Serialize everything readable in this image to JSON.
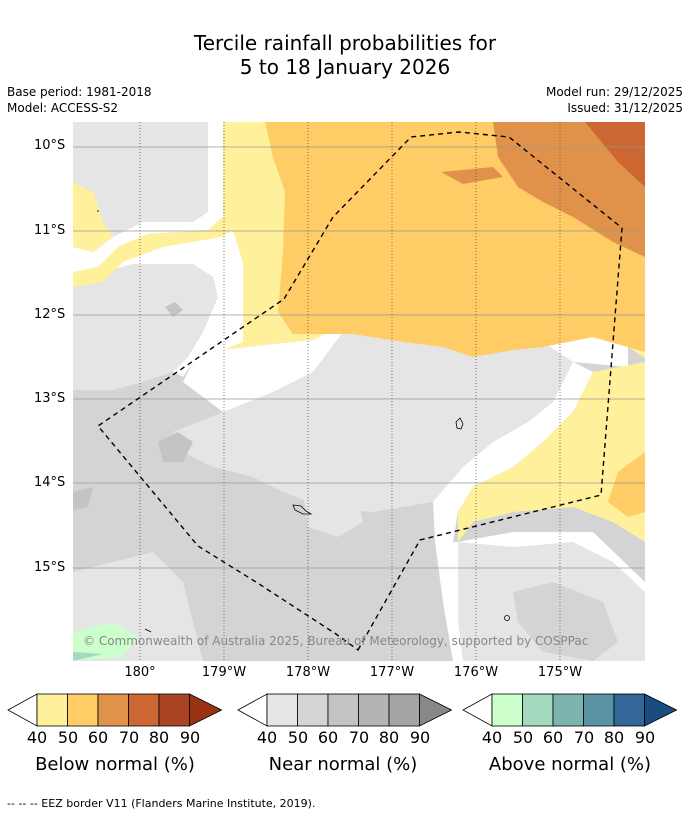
{
  "title": {
    "line1": "Tercile rainfall probabilities for",
    "line2": "5 to 18 January 2026"
  },
  "meta": {
    "base_period": "Base period: 1981-2018",
    "model": "Model: ACCESS-S2",
    "model_run": "Model run: 29/12/2025",
    "issued": "Issued: 31/12/2025"
  },
  "map": {
    "latitude_labels": [
      "10°S",
      "11°S",
      "12°S",
      "13°S",
      "14°S",
      "15°S"
    ],
    "longitude_labels": [
      "180°",
      "179°W",
      "178°W",
      "177°W",
      "176°W",
      "175°W"
    ],
    "copyright": "© Commonwealth of Australia 2025, Bureau of Meteorology, supported by COSPPac"
  },
  "colorbars": [
    {
      "name": "Below normal (%)",
      "colors": [
        "#fff09c",
        "#ffcc66",
        "#e0924a",
        "#cc6633",
        "#aa4422",
        "#993311"
      ]
    },
    {
      "name": "Near normal (%)",
      "colors": [
        "#e5e5e5",
        "#d4d4d4",
        "#c4c4c4",
        "#b4b4b4",
        "#a4a4a4",
        "#888888"
      ]
    },
    {
      "name": "Above normal (%)",
      "colors": [
        "#ccffcc",
        "#a3d9be",
        "#7db5ae",
        "#5a94a3",
        "#336699",
        "#1a4c80"
      ]
    }
  ],
  "colorbar_ticks": [
    "40",
    "50",
    "60",
    "70",
    "80",
    "90"
  ],
  "footer": "--  --  -- EEZ border V11 (Flanders Marine Institute, 2019)."
}
